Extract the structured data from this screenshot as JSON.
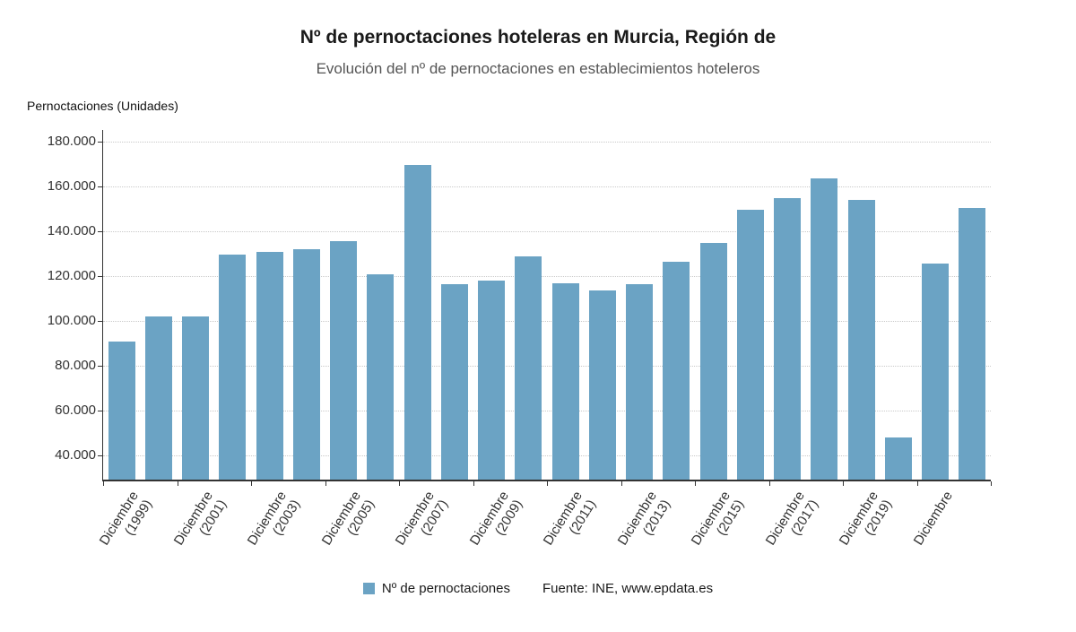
{
  "chart_data": {
    "type": "bar",
    "title": "Nº de pernoctaciones hoteleras en Murcia, Región de",
    "subtitle": "Evolución del nº de pernoctaciones en establecimientos hoteleros",
    "ylabel": "Pernoctaciones (Unidades)",
    "values": [
      91000,
      102000,
      102000,
      129500,
      131000,
      132000,
      135500,
      121000,
      169500,
      116500,
      118000,
      129000,
      117000,
      113500,
      116500,
      126500,
      135000,
      149500,
      155000,
      163500,
      154000,
      48000,
      125500,
      150500
    ],
    "x_tick_labels": [
      {
        "bar_index": 0,
        "line1": "Diciembre",
        "line2": "(1999)"
      },
      {
        "bar_index": 2,
        "line1": "Diciembre",
        "line2": "(2001)"
      },
      {
        "bar_index": 4,
        "line1": "Diciembre",
        "line2": "(2003)"
      },
      {
        "bar_index": 6,
        "line1": "Diciembre",
        "line2": "(2005)"
      },
      {
        "bar_index": 8,
        "line1": "Diciembre",
        "line2": "(2007)"
      },
      {
        "bar_index": 10,
        "line1": "Diciembre",
        "line2": "(2009)"
      },
      {
        "bar_index": 12,
        "line1": "Diciembre",
        "line2": "(2011)"
      },
      {
        "bar_index": 14,
        "line1": "Diciembre",
        "line2": "(2013)"
      },
      {
        "bar_index": 16,
        "line1": "Diciembre",
        "line2": "(2015)"
      },
      {
        "bar_index": 18,
        "line1": "Diciembre",
        "line2": "(2017)"
      },
      {
        "bar_index": 20,
        "line1": "Diciembre",
        "line2": "(2019)"
      },
      {
        "bar_index": 22,
        "line1": "Diciembre",
        "line2": ""
      }
    ],
    "yticks": [
      40000,
      60000,
      80000,
      100000,
      120000,
      140000,
      160000,
      180000
    ],
    "ytick_labels": [
      "40.000",
      "60.000",
      "80.000",
      "100.000",
      "120.000",
      "140.000",
      "160.000",
      "180.000"
    ],
    "ylim": [
      29200,
      185200
    ],
    "grid": "dotted-horizontal",
    "legend": [
      "Nº de pernoctaciones"
    ],
    "legend_position": "bottom",
    "bar_color": "#6ba3c4",
    "axis_color": "#333333",
    "grid_color": "#c9c9c9",
    "source": "Fuente: INE, www.epdata.es"
  }
}
